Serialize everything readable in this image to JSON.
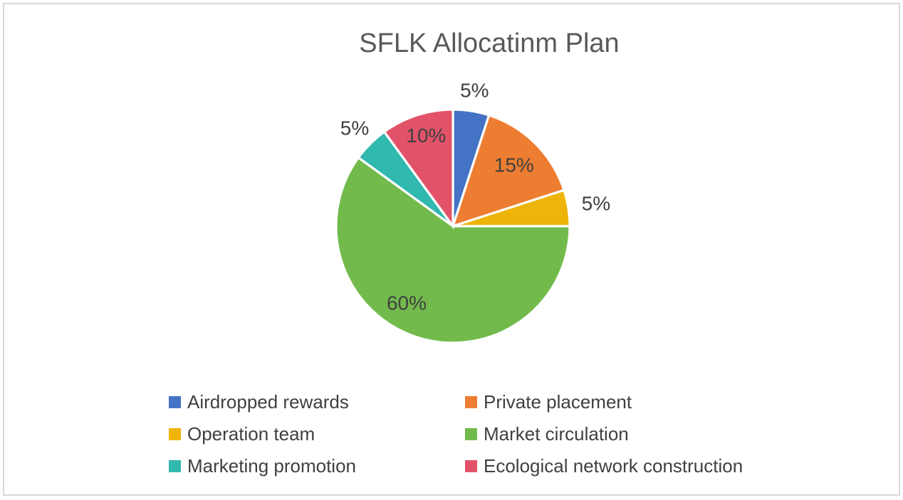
{
  "page": {
    "background_color": "#FFFFFF",
    "border_color": "#D9D9D9"
  },
  "chart_data": {
    "type": "pie",
    "title": "SFLK Allocatinm Plan",
    "title_color": "#595959",
    "label_color": "#404040",
    "separator_color": "#FFFFFF",
    "legend_position": "bottom-two-columns",
    "start_angle_deg": 0,
    "clockwise": true,
    "slices": [
      {
        "label": "Airdropped rewards",
        "value": 5,
        "pct_label": "5%",
        "color": "#4472C4",
        "label_placement": "outside",
        "label_r": 1.18
      },
      {
        "label": "Private placement",
        "value": 15,
        "pct_label": "15%",
        "color": "#ED7D31",
        "label_placement": "inside",
        "label_r": 0.74
      },
      {
        "label": "Operation team",
        "value": 5,
        "pct_label": "5%",
        "color": "#EFB40A",
        "label_placement": "outside",
        "label_r": 1.24
      },
      {
        "label": "Market circulation",
        "value": 60,
        "pct_label": "60%",
        "color": "#72BA4C",
        "label_placement": "inside",
        "label_r": 0.77,
        "label_angle_deg": 211
      },
      {
        "label": "Marketing promotion",
        "value": 5,
        "pct_label": "5%",
        "color": "#31B8AF",
        "label_placement": "outside",
        "label_r": 1.19
      },
      {
        "label": "Ecological network construction",
        "value": 10,
        "pct_label": "10%",
        "color": "#E25369",
        "label_placement": "inside",
        "label_r": 0.81,
        "label_angle_deg": 343.5
      }
    ]
  }
}
